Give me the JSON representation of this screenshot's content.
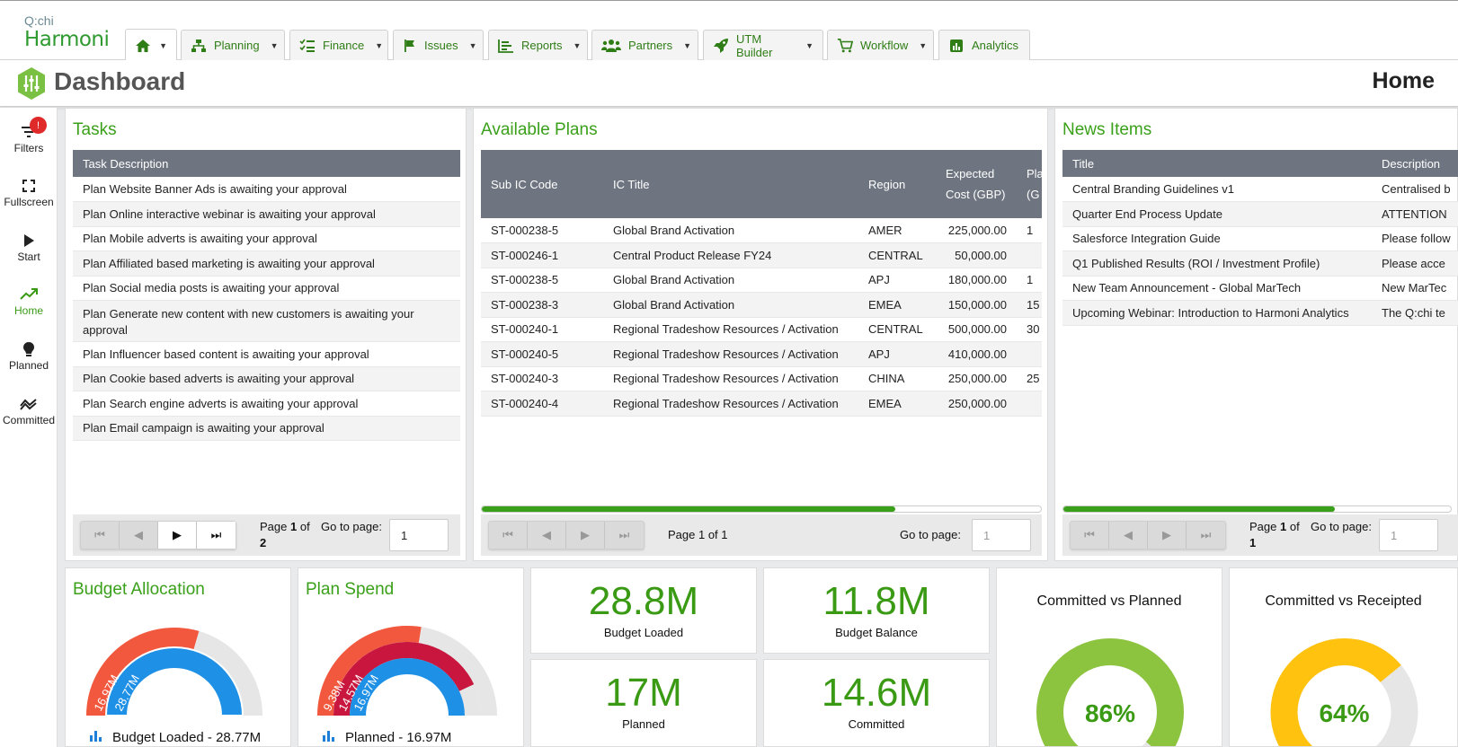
{
  "brand": {
    "logo_top": "Q:chi",
    "logo_bottom": "Harmoni"
  },
  "nav": {
    "tabs": [
      {
        "label": "",
        "icon": "home-icon"
      },
      {
        "label": "Planning",
        "icon": "sitemap-icon"
      },
      {
        "label": "Finance",
        "icon": "list-check-icon"
      },
      {
        "label": "Issues",
        "icon": "flag-icon"
      },
      {
        "label": "Reports",
        "icon": "bar-chart-icon"
      },
      {
        "label": "Partners",
        "icon": "users-icon"
      },
      {
        "label": "UTM Builder",
        "icon": "rocket-icon"
      },
      {
        "label": "Workflow",
        "icon": "cart-icon"
      },
      {
        "label": "Analytics",
        "icon": "analytics-icon"
      }
    ]
  },
  "header": {
    "title": "Dashboard",
    "page": "Home"
  },
  "sidebar": {
    "badge": "!",
    "items": [
      {
        "label": "Filters",
        "icon": "filter-icon"
      },
      {
        "label": "Fullscreen",
        "icon": "fullscreen-icon"
      },
      {
        "label": "Start",
        "icon": "play-icon"
      },
      {
        "label": "Home",
        "icon": "trend-icon"
      },
      {
        "label": "Planned",
        "icon": "lightbulb-icon"
      },
      {
        "label": "Committed",
        "icon": "committed-icon"
      }
    ]
  },
  "tasks": {
    "title": "Tasks",
    "column": "Task Description",
    "rows": [
      "Plan Website Banner Ads is awaiting your approval",
      "Plan Online interactive webinar is awaiting your approval",
      "Plan Mobile adverts is awaiting your approval",
      "Plan Affiliated based marketing is awaiting your approval",
      "Plan Social media posts is awaiting your approval",
      "Plan Generate new content with new customers is awaiting your approval",
      "Plan Influencer based content is awaiting your approval",
      "Plan Cookie based adverts is awaiting your approval",
      "Plan Search engine adverts is awaiting your approval",
      "Plan Email campaign is awaiting your approval"
    ],
    "pager": {
      "page_label": "Page",
      "page": "1",
      "of": "of",
      "total": "2",
      "goto": "Go to page:",
      "input": "1"
    }
  },
  "plans": {
    "title": "Available Plans",
    "columns": [
      "Sub IC Code",
      "IC Title",
      "Region",
      "Expected Cost (GBP)",
      "Pla Am (G"
    ],
    "rows": [
      [
        "ST-000238-5",
        "Global Brand Activation",
        "AMER",
        "225,000.00",
        "1"
      ],
      [
        "ST-000246-1",
        "Central Product Release FY24",
        "CENTRAL",
        "50,000.00",
        ""
      ],
      [
        "ST-000238-5",
        "Global Brand Activation",
        "APJ",
        "180,000.00",
        "1"
      ],
      [
        "ST-000238-3",
        "Global Brand Activation",
        "EMEA",
        "150,000.00",
        "15"
      ],
      [
        "ST-000240-1",
        "Regional Tradeshow Resources / Activation",
        "CENTRAL",
        "500,000.00",
        "30"
      ],
      [
        "ST-000240-5",
        "Regional Tradeshow Resources / Activation",
        "APJ",
        "410,000.00",
        ""
      ],
      [
        "ST-000240-3",
        "Regional Tradeshow Resources / Activation",
        "CHINA",
        "250,000.00",
        "25"
      ],
      [
        "ST-000240-4",
        "Regional Tradeshow Resources / Activation",
        "EMEA",
        "250,000.00",
        ""
      ]
    ],
    "scroll_fraction": 0.74,
    "pager": {
      "page_text": "Page 1 of 1",
      "goto": "Go to page:",
      "input": "1"
    }
  },
  "news": {
    "title": "News Items",
    "columns": [
      "Title",
      "Description"
    ],
    "rows": [
      [
        "Central Branding Guidelines v1",
        "Centralised b"
      ],
      [
        "Quarter End Process Update",
        "ATTENTION"
      ],
      [
        "Salesforce Integration Guide",
        "Please follow"
      ],
      [
        "Q1 Published Results (ROI / Investment Profile)",
        "Please acce"
      ],
      [
        "New Team Announcement - Global MarTech",
        "New MarTec"
      ],
      [
        "Upcoming Webinar: Introduction to Harmoni Analytics",
        "The Q:chi te"
      ]
    ],
    "scroll_fraction": 0.7,
    "pager": {
      "page_label": "Page",
      "page": "1",
      "of": "of",
      "total": "1",
      "goto": "Go to page:",
      "input": "1"
    }
  },
  "budget_allocation": {
    "title": "Budget Allocation",
    "outer_label": "16.97M",
    "inner_label": "28.77M",
    "outer_fraction": 0.59,
    "inner_fraction": 1.0,
    "legend": "Budget Loaded - 28.77M",
    "colors": {
      "outer": "#f2583e",
      "inner": "#1e90e6",
      "track": "#e6e6e6"
    }
  },
  "plan_spend": {
    "title": "Plan Spend",
    "outer_label": "9.38M",
    "middle_label": "14.57M",
    "inner_label": "16.97M",
    "outer_fraction": 0.55,
    "middle_fraction": 0.86,
    "inner_fraction": 1.0,
    "legend": "Planned - 16.97M",
    "colors": {
      "outer": "#f2583e",
      "middle": "#c8163e",
      "inner": "#1e90e6",
      "track": "#e6e6e6"
    }
  },
  "kpis": [
    {
      "value": "28.8M",
      "label": "Budget Loaded"
    },
    {
      "value": "11.8M",
      "label": "Budget Balance"
    },
    {
      "value": "17M",
      "label": "Planned"
    },
    {
      "value": "14.6M",
      "label": "Committed"
    }
  ],
  "gauges": [
    {
      "title": "Committed vs Planned",
      "value": "86%",
      "fraction": 0.86,
      "color": "#8cc43f"
    },
    {
      "title": "Committed vs Receipted",
      "value": "64%",
      "fraction": 0.64,
      "color": "#ffc20e"
    }
  ]
}
